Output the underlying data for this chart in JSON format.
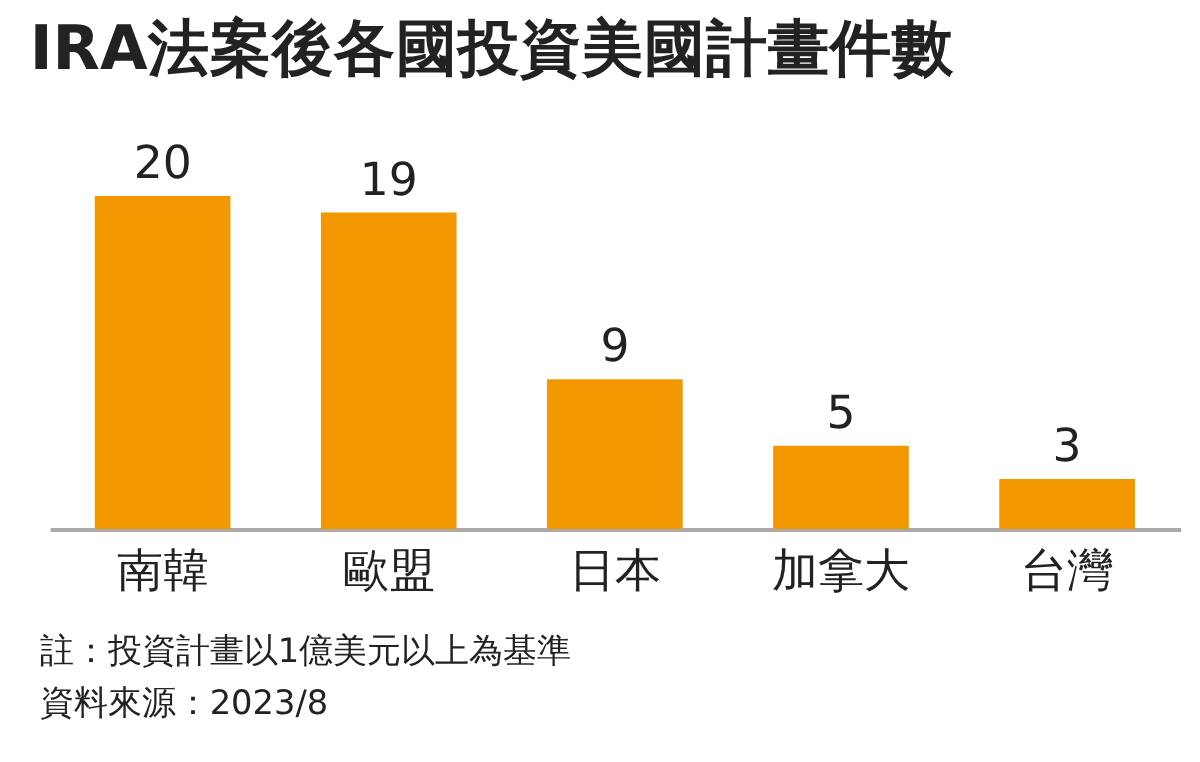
{
  "chart_data": {
    "type": "bar",
    "title": "IRA法案後各國投資美國計畫件數",
    "categories": [
      "南韓",
      "歐盟",
      "日本",
      "加拿大",
      "台灣"
    ],
    "values": [
      20,
      19,
      9,
      5,
      3
    ],
    "color": "#f39800",
    "data_labels": true,
    "annotations": [
      "註：投資計畫以1億美元以上為基準",
      "資料來源：2023/8"
    ]
  }
}
